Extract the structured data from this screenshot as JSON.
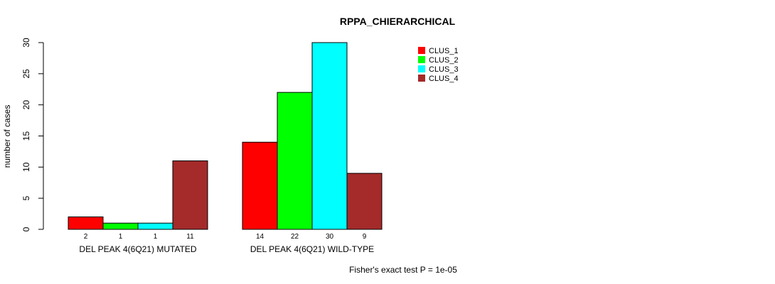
{
  "chart_data": {
    "type": "bar",
    "title": "RPPA_CHIERARCHICAL",
    "xlabel": "",
    "ylabel": "number of cases",
    "ylim": [
      0,
      30
    ],
    "yticks": [
      0,
      5,
      10,
      15,
      20,
      25,
      30
    ],
    "grid": false,
    "legend_position": "top-right",
    "categories": [
      "DEL PEAK  4(6Q21) MUTATED",
      "DEL PEAK  4(6Q21) WILD-TYPE"
    ],
    "series": [
      {
        "name": "CLUS_1",
        "color": "#ff0000",
        "values": [
          2,
          14
        ]
      },
      {
        "name": "CLUS_2",
        "color": "#00ff00",
        "values": [
          1,
          22
        ]
      },
      {
        "name": "CLUS_3",
        "color": "#00ffff",
        "values": [
          1,
          30
        ]
      },
      {
        "name": "CLUS_4",
        "color": "#a52a2a",
        "values": [
          11,
          9
        ]
      }
    ],
    "annotation": "Fisher's exact test P = 1e-05"
  }
}
